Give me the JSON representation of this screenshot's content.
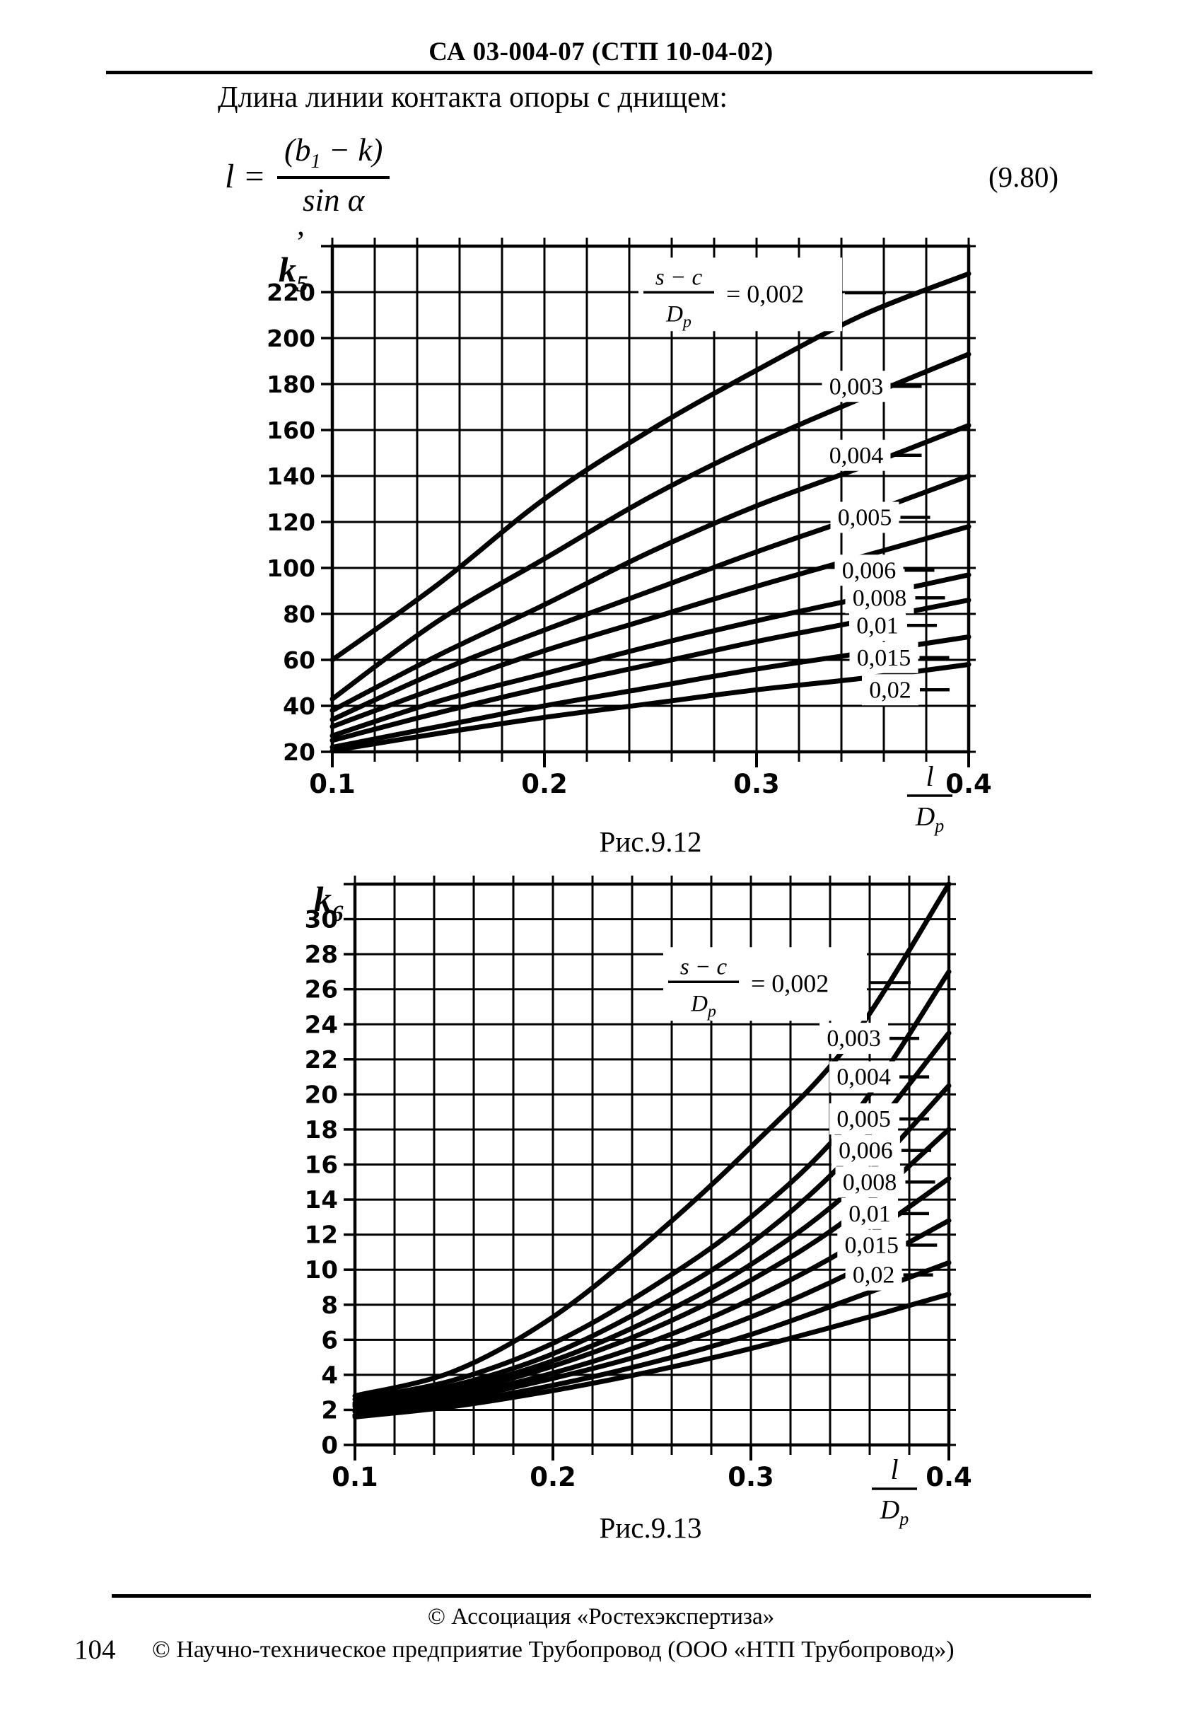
{
  "colors": {
    "ink": "#000000",
    "paper": "#ffffff"
  },
  "page": {
    "header_code": "СА 03-004-07 (СТП 10-04-02)",
    "intro_text": "Длина линии контакта опоры с днищем:",
    "equation": {
      "lhs": "l",
      "equals": "=",
      "num_open": "(b",
      "num_sub": "1",
      "num_rest": " − k)",
      "denominator": "sin α",
      "trailing_comma": ",",
      "number": "(9.80)"
    },
    "footer": {
      "line1": "© Ассоциация «Ростехэкспертиза»",
      "page_number": "104",
      "line2": "© Научно-техническое предприятие Трубопровод (ООО «НТП Трубопровод»)"
    }
  },
  "chart_data": [
    {
      "type": "line",
      "caption": "Рис.9.12",
      "y_axis_title": {
        "base": "k",
        "sub": "5"
      },
      "x_axis_title": {
        "num": "l",
        "den_base": "D",
        "den_sub": "р"
      },
      "xlim": [
        0.1,
        0.4
      ],
      "ylim": [
        20,
        240
      ],
      "x_grid_step": 0.02,
      "y_grid_step": 20,
      "grid": true,
      "x_ticks": {
        "values": [
          0.1,
          0.2,
          0.3,
          0.4
        ],
        "labels": [
          "0.1",
          "0.2",
          "0.3",
          "0.4"
        ]
      },
      "y_ticks": {
        "values": [
          220,
          200,
          180,
          160,
          140,
          120,
          100,
          80,
          60,
          40,
          20
        ],
        "labels": [
          "220",
          "200",
          "180",
          "160",
          "140",
          "120",
          "100",
          "80",
          "60",
          "40",
          "20"
        ]
      },
      "curve_family_label": {
        "num": "s − c",
        "den_base": "D",
        "den_sub": "р",
        "eq": "= 0,002",
        "x": 0.295,
        "y": 219
      },
      "x": [
        0.1,
        0.15,
        0.2,
        0.25,
        0.3,
        0.35,
        0.4
      ],
      "series": [
        {
          "name": "0,002",
          "values": [
            60,
            93,
            130,
            160,
            186,
            210,
            228
          ],
          "label": null
        },
        {
          "name": "0,003",
          "values": [
            43,
            77,
            104,
            131,
            154,
            174,
            193
          ],
          "label": {
            "x": 0.347,
            "y": 179
          }
        },
        {
          "name": "0,004",
          "values": [
            38,
            62,
            84,
            107,
            127,
            144,
            162
          ],
          "label": {
            "x": 0.347,
            "y": 149
          }
        },
        {
          "name": "0,005",
          "values": [
            34,
            55,
            73,
            90,
            107,
            123,
            140
          ],
          "label": {
            "x": 0.351,
            "y": 122
          }
        },
        {
          "name": "0,006",
          "values": [
            31,
            48,
            64,
            78,
            92,
            105,
            118
          ],
          "label": {
            "x": 0.353,
            "y": 99
          }
        },
        {
          "name": "0,008",
          "values": [
            27,
            42,
            54,
            66,
            77,
            87,
            97
          ],
          "label": {
            "x": 0.358,
            "y": 87
          }
        },
        {
          "name": "0,01",
          "values": [
            25,
            37,
            48,
            58,
            68,
            77,
            86
          ],
          "label": {
            "x": 0.357,
            "y": 75
          }
        },
        {
          "name": "0,015",
          "values": [
            22,
            31,
            40,
            48,
            56,
            63,
            70
          ],
          "label": {
            "x": 0.36,
            "y": 61
          }
        },
        {
          "name": "0,02",
          "values": [
            20.5,
            28,
            35,
            41,
            47,
            52,
            58
          ],
          "label": {
            "x": 0.363,
            "y": 47
          }
        }
      ]
    },
    {
      "type": "line",
      "caption": "Рис.9.13",
      "y_axis_title": {
        "base": "k",
        "sub": "6"
      },
      "x_axis_title": {
        "num": "l",
        "den_base": "D",
        "den_sub": "р"
      },
      "xlim": [
        0.1,
        0.4
      ],
      "ylim": [
        0,
        32
      ],
      "x_grid_step": 0.02,
      "y_grid_step": 2,
      "grid": true,
      "x_ticks": {
        "values": [
          0.1,
          0.2,
          0.3,
          0.4
        ],
        "labels": [
          "0.1",
          "0.2",
          "0.3",
          "0.4"
        ]
      },
      "y_ticks": {
        "values": [
          30,
          28,
          26,
          24,
          22,
          20,
          18,
          16,
          14,
          12,
          10,
          8,
          6,
          4,
          2,
          0
        ],
        "labels": [
          "30",
          "28",
          "26",
          "24",
          "22",
          "20",
          "18",
          "16",
          "14",
          "12",
          "10",
          "8",
          "6",
          "4",
          "2",
          "0"
        ]
      },
      "curve_family_label": {
        "num": "s − c",
        "den_base": "D",
        "den_sub": "р",
        "eq": "= 0,002",
        "x": 0.31,
        "y": 26.3
      },
      "x": [
        0.1,
        0.15,
        0.2,
        0.25,
        0.3,
        0.35,
        0.4
      ],
      "series": [
        {
          "name": "0,002",
          "values": [
            2.8,
            4.2,
            7.3,
            11.8,
            17,
            23,
            32
          ],
          "label": null
        },
        {
          "name": "0,003",
          "values": [
            2.6,
            3.7,
            5.8,
            9,
            13,
            18.5,
            27
          ],
          "label": {
            "x": 0.352,
            "y": 23.2
          }
        },
        {
          "name": "0,004",
          "values": [
            2.4,
            3.4,
            5.2,
            8,
            11.5,
            16.5,
            23.5
          ],
          "label": {
            "x": 0.357,
            "y": 21.0
          }
        },
        {
          "name": "0,005",
          "values": [
            2.3,
            3.2,
            4.8,
            7.2,
            10.3,
            14.5,
            20.5
          ],
          "label": {
            "x": 0.357,
            "y": 18.6
          }
        },
        {
          "name": "0,006",
          "values": [
            2.2,
            3.0,
            4.5,
            6.6,
            9.4,
            13,
            18
          ],
          "label": {
            "x": 0.358,
            "y": 16.8
          }
        },
        {
          "name": "0,008",
          "values": [
            2.0,
            2.8,
            4.1,
            5.9,
            8.3,
            11.3,
            15.2
          ],
          "label": {
            "x": 0.36,
            "y": 15.0
          }
        },
        {
          "name": "0,01",
          "values": [
            1.9,
            2.6,
            3.8,
            5.3,
            7.3,
            9.8,
            12.8
          ],
          "label": {
            "x": 0.36,
            "y": 13.2
          }
        },
        {
          "name": "0,015",
          "values": [
            1.7,
            2.4,
            3.4,
            4.7,
            6.3,
            8.3,
            10.4
          ],
          "label": {
            "x": 0.361,
            "y": 11.4
          }
        },
        {
          "name": "0,02",
          "values": [
            1.6,
            2.2,
            3.1,
            4.2,
            5.5,
            7.0,
            8.6
          ],
          "label": {
            "x": 0.362,
            "y": 9.7
          }
        }
      ]
    }
  ]
}
